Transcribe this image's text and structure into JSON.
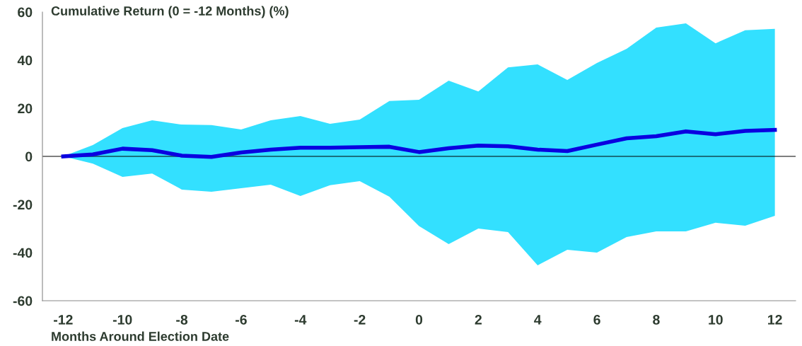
{
  "chart_data": {
    "type": "line",
    "ylabel": "Cumulative Return (0 = -12 Months) (%)",
    "xlabel": "Months Around Election Date",
    "x": [
      -12,
      -11,
      -10,
      -9,
      -8,
      -7,
      -6,
      -5,
      -4,
      -3,
      -2,
      -1,
      0,
      1,
      2,
      3,
      4,
      5,
      6,
      7,
      8,
      9,
      10,
      11,
      12
    ],
    "series": [
      {
        "color": "#0a00e0",
        "values": [
          0,
          0.8,
          3.2,
          2.6,
          0.3,
          -0.2,
          1.6,
          2.8,
          3.6,
          3.6,
          3.8,
          4.0,
          1.8,
          3.4,
          4.5,
          4.2,
          2.8,
          2.2,
          4.9,
          7.5,
          8.4,
          10.4,
          9.2,
          10.6,
          11.0
        ],
        "upper": [
          0,
          4.7,
          11.8,
          15,
          13.2,
          13,
          11.2,
          15,
          16.8,
          13.5,
          15.3,
          23,
          23.5,
          31.5,
          27,
          37,
          38.2,
          31.8,
          38.8,
          44.7,
          53.5,
          55.3,
          47,
          52.4,
          53
        ],
        "lower": [
          0,
          -3,
          -8.5,
          -7.1,
          -13.8,
          -14.7,
          -13.2,
          -11.8,
          -16.5,
          -12,
          -10.3,
          -16.8,
          -29,
          -36.5,
          -30,
          -31.5,
          -45.3,
          -38.8,
          -40,
          -33.5,
          -31.2,
          -31.2,
          -27.6,
          -28.8,
          -24.7
        ]
      }
    ],
    "xlim": [
      -12.7,
      12.7
    ],
    "ylim": [
      -60,
      60
    ],
    "xticks": [
      -12,
      -10,
      -8,
      -6,
      -4,
      -2,
      0,
      2,
      4,
      6,
      8,
      10,
      12
    ],
    "yticks": [
      -60,
      -40,
      -20,
      0,
      20,
      40,
      60
    ],
    "ref_lines": [
      {
        "axis": "y",
        "value": 0,
        "color": "#000000"
      }
    ],
    "grid": false,
    "legend": false,
    "marker": "none",
    "line_style": "solid"
  }
}
